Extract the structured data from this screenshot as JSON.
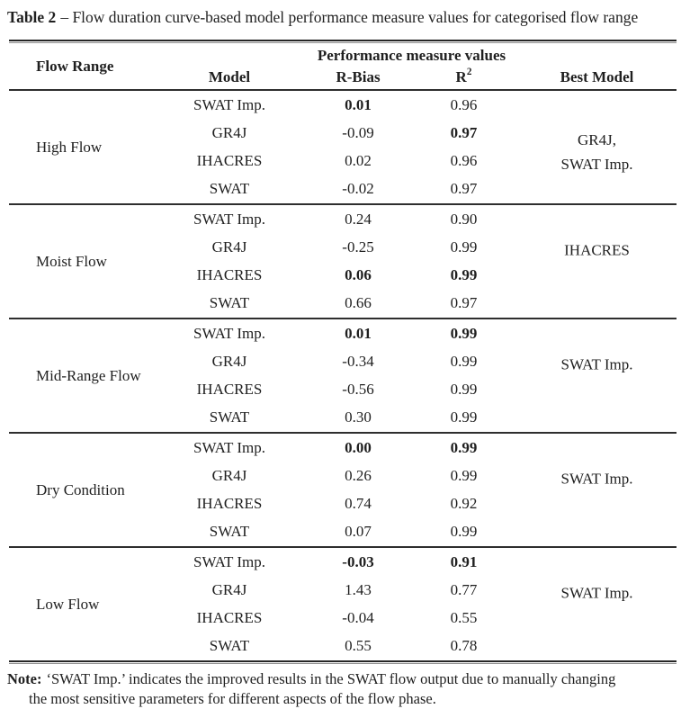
{
  "title": {
    "prefix": "Table 2",
    "rest": "– Flow duration curve-based model performance measure values for categorised flow range"
  },
  "header": {
    "flow_range": "Flow Range",
    "model": "Model",
    "performance_group": "Performance measure values",
    "r_bias": "R-Bias",
    "r2_base": "R",
    "r2_sup": "2",
    "best_model": "Best Model"
  },
  "blocks": [
    {
      "flow_range": "High Flow",
      "best_model": "GR4J,\nSWAT Imp.",
      "rows": [
        {
          "model": "SWAT Imp.",
          "r_bias": "0.01",
          "r_bias_bold": true,
          "r2": "0.96",
          "r2_bold": false
        },
        {
          "model": "GR4J",
          "r_bias": "-0.09",
          "r_bias_bold": false,
          "r2": "0.97",
          "r2_bold": true
        },
        {
          "model": "IHACRES",
          "r_bias": "0.02",
          "r_bias_bold": false,
          "r2": "0.96",
          "r2_bold": false
        },
        {
          "model": "SWAT",
          "r_bias": "-0.02",
          "r_bias_bold": false,
          "r2": "0.97",
          "r2_bold": false
        }
      ]
    },
    {
      "flow_range": "Moist Flow",
      "best_model": "IHACRES",
      "rows": [
        {
          "model": "SWAT Imp.",
          "r_bias": "0.24",
          "r_bias_bold": false,
          "r2": "0.90",
          "r2_bold": false
        },
        {
          "model": "GR4J",
          "r_bias": "-0.25",
          "r_bias_bold": false,
          "r2": "0.99",
          "r2_bold": false
        },
        {
          "model": "IHACRES",
          "r_bias": "0.06",
          "r_bias_bold": true,
          "r2": "0.99",
          "r2_bold": true
        },
        {
          "model": "SWAT",
          "r_bias": "0.66",
          "r_bias_bold": false,
          "r2": "0.97",
          "r2_bold": false
        }
      ]
    },
    {
      "flow_range": "Mid-Range Flow",
      "best_model": "SWAT Imp.",
      "rows": [
        {
          "model": "SWAT Imp.",
          "r_bias": "0.01",
          "r_bias_bold": true,
          "r2": "0.99",
          "r2_bold": true
        },
        {
          "model": "GR4J",
          "r_bias": "-0.34",
          "r_bias_bold": false,
          "r2": "0.99",
          "r2_bold": false
        },
        {
          "model": "IHACRES",
          "r_bias": "-0.56",
          "r_bias_bold": false,
          "r2": "0.99",
          "r2_bold": false
        },
        {
          "model": "SWAT",
          "r_bias": "0.30",
          "r_bias_bold": false,
          "r2": "0.99",
          "r2_bold": false
        }
      ]
    },
    {
      "flow_range": "Dry Condition",
      "best_model": "SWAT Imp.",
      "rows": [
        {
          "model": "SWAT Imp.",
          "r_bias": "0.00",
          "r_bias_bold": true,
          "r2": "0.99",
          "r2_bold": true
        },
        {
          "model": "GR4J",
          "r_bias": "0.26",
          "r_bias_bold": false,
          "r2": "0.99",
          "r2_bold": false
        },
        {
          "model": "IHACRES",
          "r_bias": "0.74",
          "r_bias_bold": false,
          "r2": "0.92",
          "r2_bold": false
        },
        {
          "model": "SWAT",
          "r_bias": "0.07",
          "r_bias_bold": false,
          "r2": "0.99",
          "r2_bold": false
        }
      ]
    },
    {
      "flow_range": "Low Flow",
      "best_model": "SWAT Imp.",
      "rows": [
        {
          "model": "SWAT Imp.",
          "r_bias": "-0.03",
          "r_bias_bold": true,
          "r2": "0.91",
          "r2_bold": true
        },
        {
          "model": "GR4J",
          "r_bias": "1.43",
          "r_bias_bold": false,
          "r2": "0.77",
          "r2_bold": false
        },
        {
          "model": "IHACRES",
          "r_bias": "-0.04",
          "r_bias_bold": false,
          "r2": "0.55",
          "r2_bold": false
        },
        {
          "model": "SWAT",
          "r_bias": "0.55",
          "r_bias_bold": false,
          "r2": "0.78",
          "r2_bold": false
        }
      ]
    }
  ],
  "note": {
    "label": "Note:",
    "text": "‘SWAT Imp.’ indicates the improved results in the SWAT flow output due to manually changing the most sensitive parameters for different aspects of the flow phase."
  }
}
